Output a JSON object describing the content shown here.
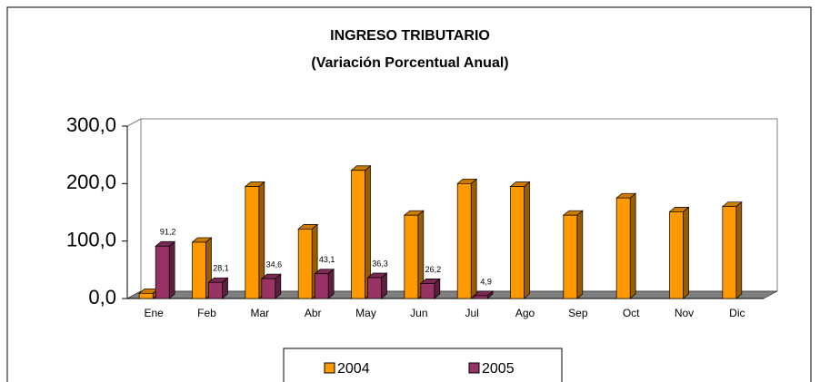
{
  "chart_data": {
    "type": "bar3d",
    "title": "INGRESO TRIBUTARIO",
    "subtitle": "(Variación Porcentual Anual)",
    "categories": [
      "Ene",
      "Feb",
      "Mar",
      "Abr",
      "May",
      "Jun",
      "Jul",
      "Ago",
      "Sep",
      "Oct",
      "Nov",
      "Dic"
    ],
    "series": [
      {
        "name": "2004",
        "color": "#ff9900",
        "values": [
          9,
          98,
          195,
          121,
          223,
          145,
          200,
          195,
          145,
          175,
          151,
          160
        ]
      },
      {
        "name": "2005",
        "color": "#993366",
        "values": [
          91.2,
          28.1,
          34.6,
          43.1,
          36.3,
          26.2,
          4.9,
          null,
          null,
          null,
          null,
          null
        ],
        "value_labels": [
          "91,2",
          "28,1",
          "34,6",
          "43,1",
          "36,3",
          "26,2",
          "4,9",
          null,
          null,
          null,
          null,
          null
        ]
      }
    ],
    "ylim": [
      0,
      300
    ],
    "yticks": [
      {
        "value": 0,
        "label": "0,0"
      },
      {
        "value": 100,
        "label": "100,0"
      },
      {
        "value": 200,
        "label": "200,0"
      },
      {
        "value": 300,
        "label": "300,0"
      }
    ],
    "legend": "bottom"
  }
}
